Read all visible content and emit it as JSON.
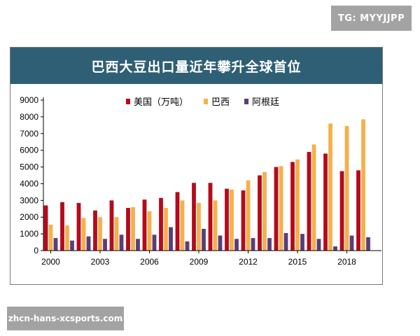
{
  "watermark_top": "TG: MYYJJPP",
  "watermark_bottom": "zhcn-hans-xcsports.com",
  "colors": {
    "title_bar": "#2f5f74",
    "usa": "#b50a1c",
    "brazil": "#f5b04c",
    "argentina": "#5c3d78"
  },
  "chart_data": {
    "type": "bar",
    "title": "巴西大豆出口量近年攀升全球首位",
    "xlabel": "",
    "ylabel": "",
    "ylim": [
      0,
      9000
    ],
    "yticks": [
      0,
      1000,
      2000,
      3000,
      4000,
      5000,
      6000,
      7000,
      8000,
      9000
    ],
    "categories": [
      "2000",
      "2001",
      "2002",
      "2003",
      "2004",
      "2005",
      "2006",
      "2007",
      "2008",
      "2009",
      "2010",
      "2011",
      "2012",
      "2013",
      "2014",
      "2015",
      "2016",
      "2017",
      "2018",
      "2019"
    ],
    "xtick_labels": [
      "2000",
      "2003",
      "2006",
      "2009",
      "2012",
      "2015",
      "2018"
    ],
    "legend_position": "top",
    "grid": false,
    "series": [
      {
        "name": "美国（万吨）",
        "color": "#b50a1c",
        "values": [
          2700,
          2900,
          2850,
          2400,
          3000,
          2550,
          3050,
          3150,
          3500,
          4050,
          4050,
          3700,
          3600,
          4500,
          5000,
          5300,
          5900,
          5800,
          4750,
          4800
        ]
      },
      {
        "name": "巴西",
        "color": "#f5b04c",
        "values": [
          1550,
          1500,
          1950,
          2000,
          2000,
          2600,
          2350,
          2550,
          3000,
          2850,
          3000,
          3650,
          4200,
          4700,
          5050,
          5450,
          6350,
          7600,
          7450,
          7850
        ]
      },
      {
        "name": "阿根廷",
        "color": "#5c3d78",
        "values": [
          750,
          600,
          850,
          700,
          950,
          700,
          950,
          1400,
          550,
          1300,
          900,
          700,
          750,
          750,
          1050,
          1000,
          700,
          250,
          900,
          800
        ]
      }
    ]
  }
}
